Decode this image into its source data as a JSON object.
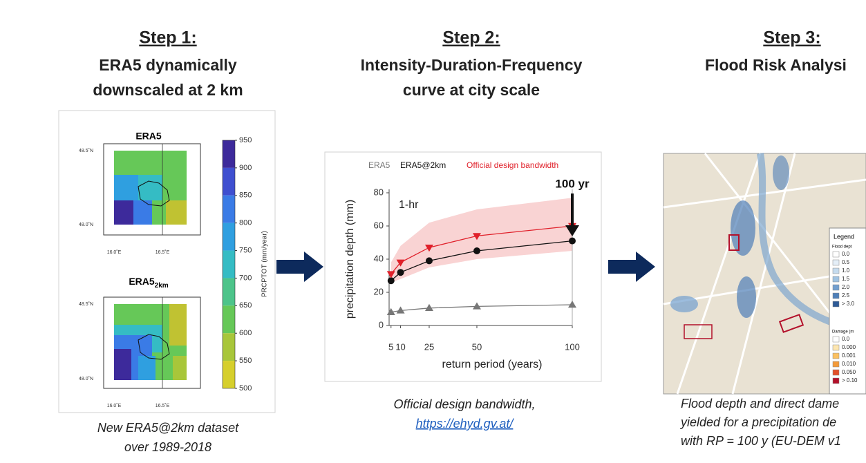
{
  "steps": [
    {
      "heading": "Step 1:",
      "subtitle": [
        "ERA5 dynamically",
        "downscaled at 2 km"
      ],
      "caption": [
        "New ERA5@2km dataset",
        "over 1989-2018"
      ]
    },
    {
      "heading": "Step 2:",
      "subtitle": [
        "Intensity-Duration-Frequency",
        "curve at city scale"
      ],
      "caption": [
        "Official design bandwidth,"
      ],
      "link": "https://ehyd.gv.at/"
    },
    {
      "heading": "Step 3:",
      "subtitle": [
        "Flood Risk Analysi"
      ],
      "caption": [
        "Flood depth and direct dame",
        "yielded for a precipitation de",
        "with RP = 100 y (EU-DEM v1"
      ]
    }
  ],
  "step1_figure": {
    "maps": [
      {
        "title": "ERA5"
      },
      {
        "title": "ERA5",
        "subscript": "2km"
      }
    ],
    "lat_labels": [
      "48.5˚N",
      "48.0˚N"
    ],
    "lon_labels": [
      "16.0˚E",
      "16.5˚E"
    ],
    "colorbar": {
      "label": "PRCPTOT (mm/year)",
      "ticks": [
        950,
        900,
        850,
        800,
        750,
        700,
        650,
        600,
        550,
        500
      ],
      "colors": [
        "#3d2a9b",
        "#3f4fd0",
        "#3a7be6",
        "#2f9fe0",
        "#35bcc4",
        "#4dc48a",
        "#66c858",
        "#a8c63a",
        "#d6cf2c",
        "#f5ec2a"
      ]
    }
  },
  "chart_data": {
    "type": "line",
    "x": [
      5,
      10,
      25,
      50,
      100
    ],
    "xlim": [
      4,
      100
    ],
    "xticks": [
      5,
      10,
      25,
      50,
      100
    ],
    "ylim": [
      0,
      80
    ],
    "yticks": [
      0,
      20,
      40,
      60,
      80
    ],
    "xlabel": "return period (years)",
    "ylabel": "precipitation depth (mm)",
    "series": [
      {
        "name": "ERA5",
        "color": "#777777",
        "marker": "triangle-up",
        "values": [
          8,
          9,
          10.5,
          11.5,
          12.5
        ]
      },
      {
        "name": "ERA5@2km",
        "color": "#111111",
        "marker": "circle",
        "values": [
          27,
          32,
          39,
          45,
          51
        ]
      },
      {
        "name": "Official design bandwidth",
        "color": "#e0202a",
        "marker": "triangle-down",
        "values": [
          31,
          38,
          47,
          54,
          60
        ]
      }
    ],
    "band": {
      "color": "#f9d3d3",
      "lower": [
        26,
        28,
        35,
        40,
        45
      ],
      "upper": [
        38,
        48,
        62,
        70,
        77
      ]
    },
    "annotations": [
      "1-hr",
      "100 yr"
    ]
  },
  "step3_figure": {
    "legend_title": "Legend",
    "depth_title": "Flood dept",
    "depth_classes": [
      "0.0",
      "0.5",
      "1.0",
      "1.5",
      "2.0",
      "2.5",
      "> 3.0"
    ],
    "depth_colors": [
      "#ffffff",
      "#e4eef7",
      "#c5dbee",
      "#9fc3e2",
      "#729fcf",
      "#4f7fb8",
      "#2f5a96"
    ],
    "damage_title": "Damage (m",
    "damage_classes": [
      "0.0",
      "0.000",
      "0.001",
      "0.010",
      "0.050",
      "> 0.10"
    ],
    "damage_colors": [
      "#ffffff",
      "#fde6b0",
      "#fbc060",
      "#f39a3a",
      "#e2502a",
      "#b3102a"
    ]
  }
}
